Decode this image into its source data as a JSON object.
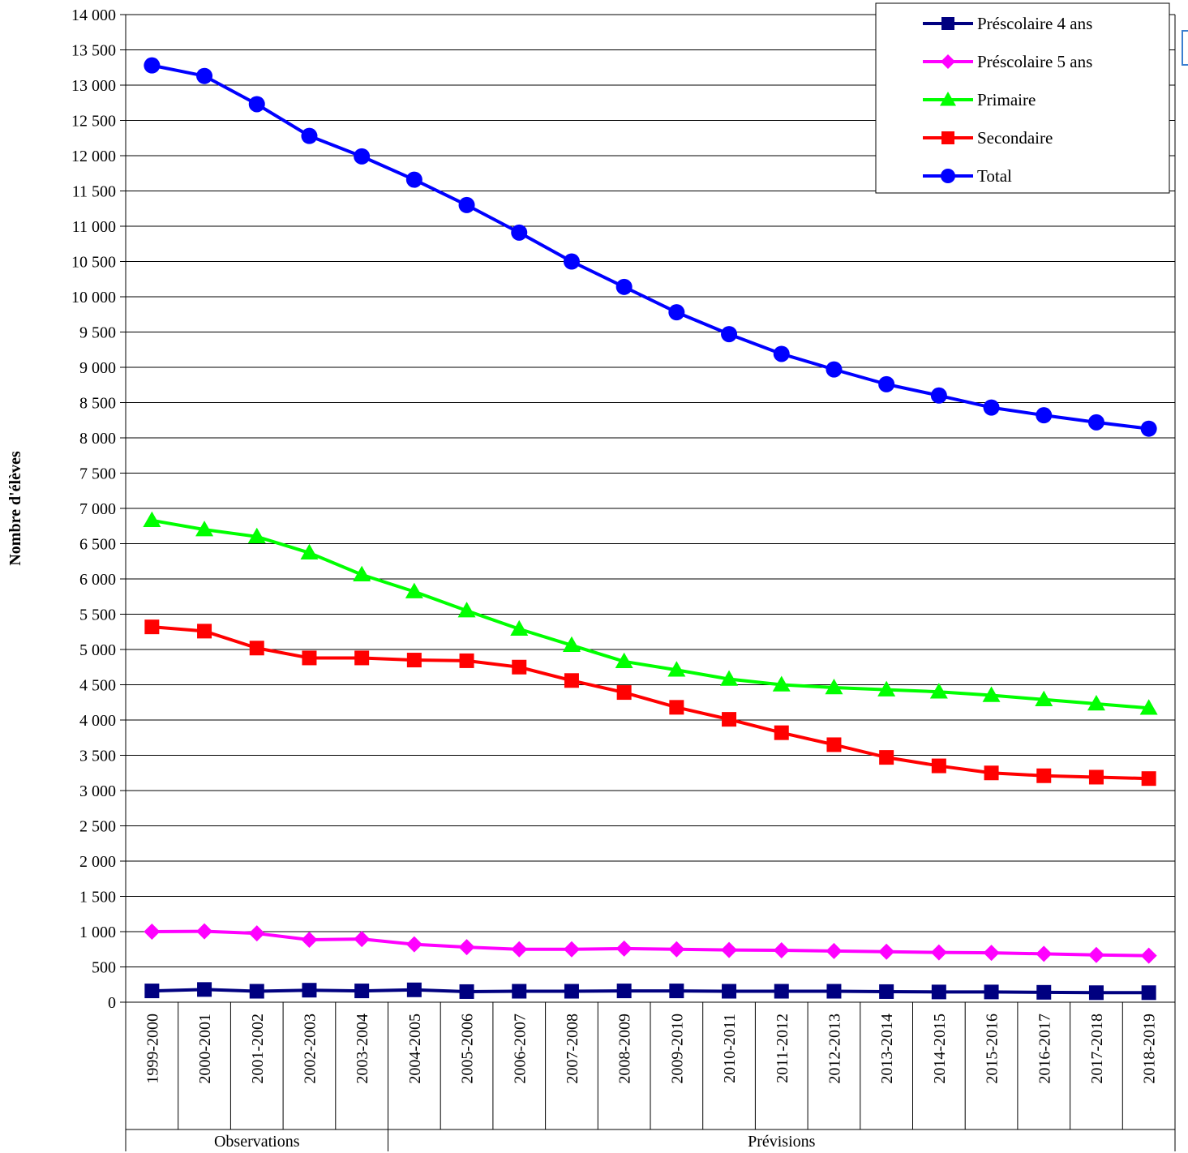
{
  "chart_data": {
    "type": "line",
    "title": "",
    "ylabel": "Nombre d'élèves",
    "xlabel": "",
    "ylim": [
      0,
      14000
    ],
    "ytick_step": 500,
    "yticks": [
      "0",
      "500",
      "1 000",
      "1 500",
      "2 000",
      "2 500",
      "3 000",
      "3 500",
      "4 000",
      "4 500",
      "5 000",
      "5 500",
      "6 000",
      "6 500",
      "7 000",
      "7 500",
      "8 000",
      "8 500",
      "9 000",
      "9 500",
      "10 000",
      "10 500",
      "11 000",
      "11 500",
      "12 000",
      "12 500",
      "13 000",
      "13 500",
      "14 000"
    ],
    "grid": "horizontal",
    "legend_position": "top-right",
    "categories": [
      "1999-2000",
      "2000-2001",
      "2001-2002",
      "2002-2003",
      "2003-2004",
      "2004-2005",
      "2005-2006",
      "2006-2007",
      "2007-2008",
      "2008-2009",
      "2009-2010",
      "2010-2011",
      "2011-2012",
      "2012-2013",
      "2013-2014",
      "2014-2015",
      "2015-2016",
      "2016-2017",
      "2017-2018",
      "2018-2019"
    ],
    "groups": [
      {
        "label": "Observations",
        "start": 0,
        "end": 4
      },
      {
        "label": "Prévisions",
        "start": 5,
        "end": 19
      }
    ],
    "series": [
      {
        "name": "Préscolaire 4 ans",
        "color": "#000080",
        "marker": "square",
        "values": [
          160,
          180,
          155,
          170,
          160,
          175,
          150,
          155,
          155,
          160,
          160,
          155,
          155,
          155,
          150,
          145,
          145,
          140,
          135,
          135
        ]
      },
      {
        "name": "Préscolaire 5 ans",
        "color": "#ff00ff",
        "marker": "diamond",
        "values": [
          1000,
          1005,
          975,
          885,
          895,
          820,
          780,
          750,
          750,
          760,
          750,
          740,
          735,
          725,
          715,
          705,
          700,
          685,
          670,
          660
        ]
      },
      {
        "name": "Primaire",
        "color": "#00ff00",
        "marker": "triangle",
        "values": [
          6830,
          6700,
          6600,
          6370,
          6060,
          5820,
          5550,
          5290,
          5060,
          4830,
          4710,
          4580,
          4500,
          4460,
          4430,
          4400,
          4350,
          4290,
          4230,
          4170
        ]
      },
      {
        "name": "Secondaire",
        "color": "#ff0000",
        "marker": "square",
        "values": [
          5320,
          5260,
          5020,
          4880,
          4880,
          4850,
          4840,
          4750,
          4560,
          4390,
          4180,
          4010,
          3820,
          3650,
          3470,
          3350,
          3250,
          3210,
          3190,
          3170
        ]
      },
      {
        "name": "Total",
        "color": "#0000ff",
        "marker": "circle",
        "values": [
          13280,
          13130,
          12730,
          12280,
          11990,
          11660,
          11300,
          10910,
          10500,
          10140,
          9780,
          9470,
          9190,
          8970,
          8760,
          8600,
          8430,
          8320,
          8220,
          8130
        ]
      }
    ]
  }
}
